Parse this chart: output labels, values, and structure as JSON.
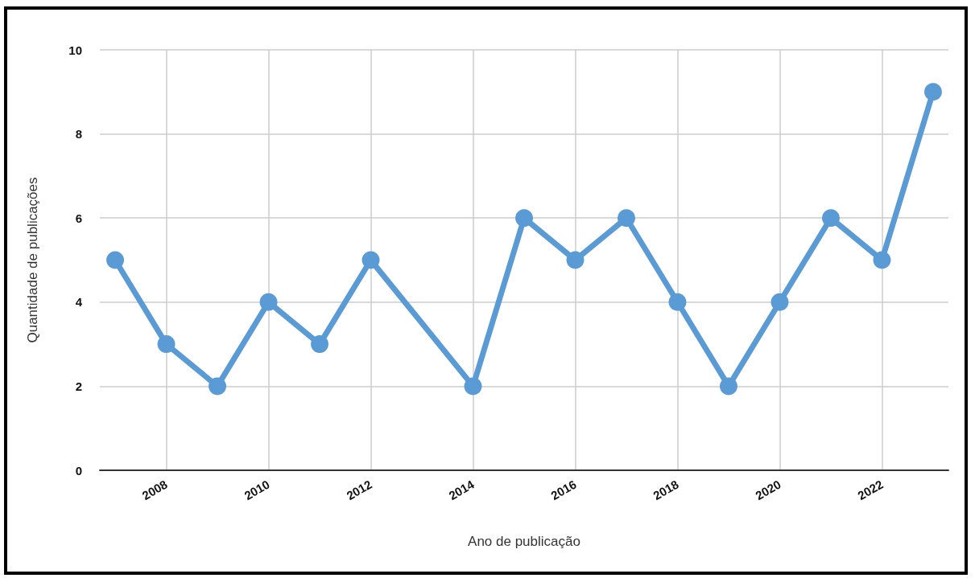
{
  "chart_data": {
    "type": "line",
    "xlabel": "Ano de publicação",
    "ylabel": "Quantidade de publicações",
    "x": [
      2007,
      2008,
      2009,
      2010,
      2011,
      2012,
      2014,
      2015,
      2016,
      2017,
      2018,
      2019,
      2020,
      2021,
      2022,
      2023
    ],
    "series": [
      {
        "color": "#5b9bd5",
        "values": [
          5,
          3,
          2,
          4,
          3,
          5,
          2,
          6,
          5,
          6,
          4,
          2,
          4,
          6,
          5,
          9
        ]
      }
    ],
    "xlim": [
      2006.7,
      2023.3
    ],
    "xticks": [
      2008,
      2010,
      2012,
      2014,
      2016,
      2018,
      2020,
      2022
    ],
    "ylim": [
      0,
      10
    ],
    "yticks": [
      0,
      2,
      4,
      6,
      8,
      10
    ],
    "grid": true,
    "marker": "circle",
    "line_style": "solid"
  }
}
